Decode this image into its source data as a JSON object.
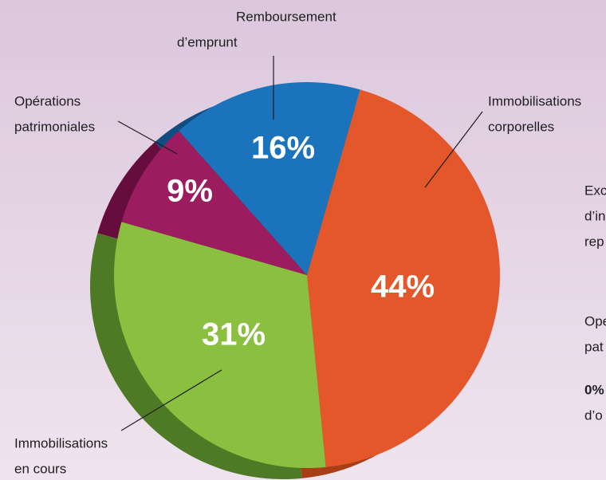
{
  "chart_data": {
    "type": "pie",
    "categories": [
      [
        "Immobilisations",
        "corporelles"
      ],
      [
        "Immobilisations",
        "en cours"
      ],
      [
        "Opérations",
        "patrimoniales"
      ],
      [
        "Remboursement",
        "d’emprunt"
      ]
    ],
    "values": [
      44,
      31,
      9,
      16
    ],
    "value_labels": [
      "44%",
      "31%",
      "9%",
      "16%"
    ],
    "colors": [
      "#e4572a",
      "#8bbf3f",
      "#9b1c5f",
      "#1b74bb"
    ],
    "shadow_colors": [
      "#a83e18",
      "#4f7a25",
      "#670d3d",
      "#114d80"
    ],
    "side_texts": [
      "Exc",
      "d’in",
      "rep",
      "Ope",
      "pat",
      "0%",
      "d’o"
    ]
  }
}
